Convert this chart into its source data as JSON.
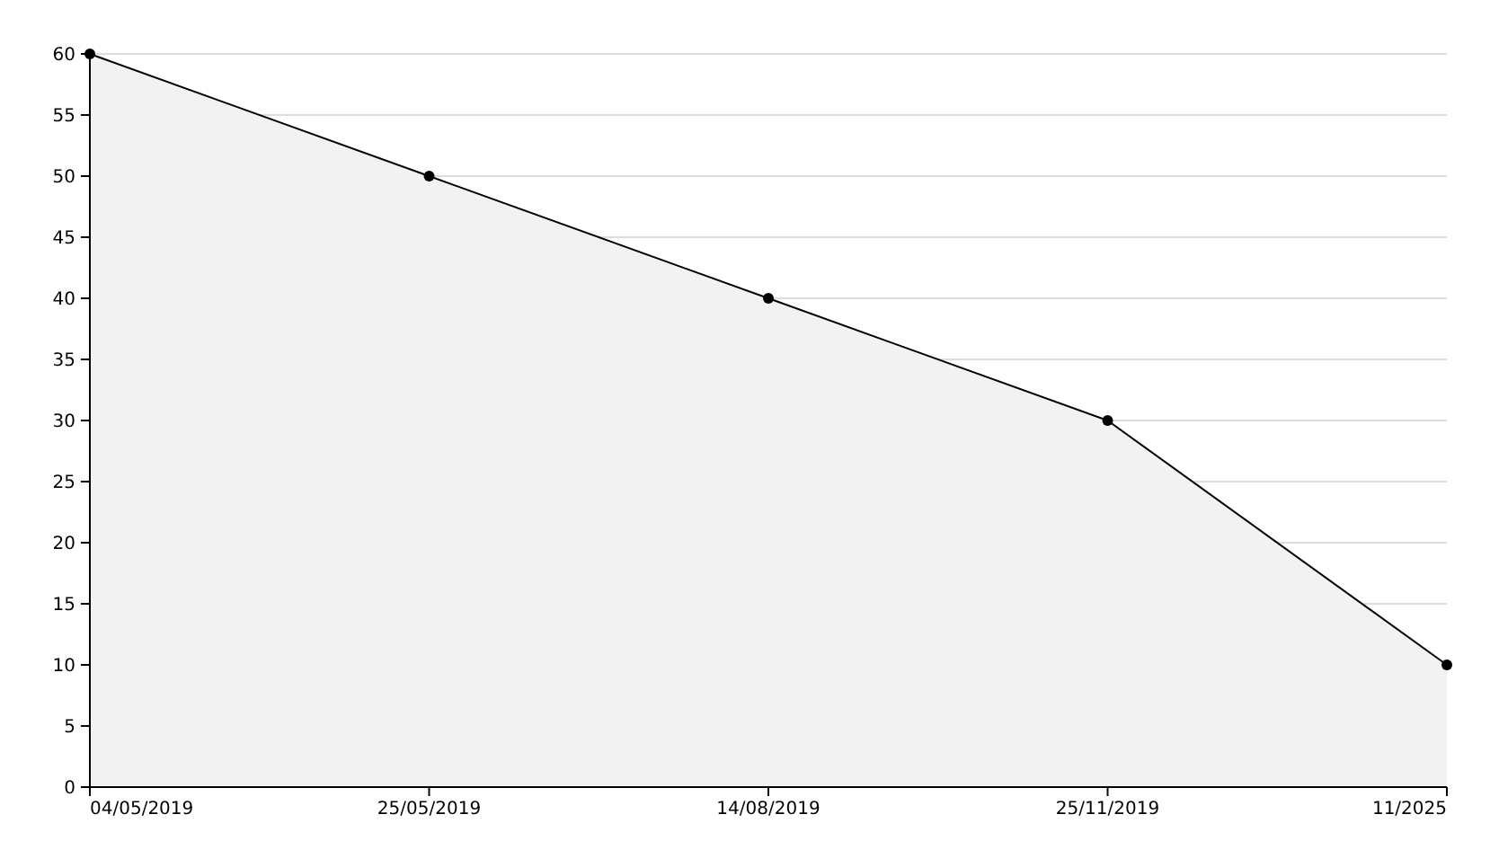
{
  "chart_data": {
    "type": "area",
    "categories": [
      "04/05/2019",
      "25/05/2019",
      "14/08/2019",
      "25/11/2019",
      "11/2025"
    ],
    "series": [
      {
        "color": "#000000",
        "values": [
          60,
          50,
          40,
          30,
          10
        ]
      }
    ],
    "ylim": [
      0,
      60
    ],
    "yticks": [
      0,
      5,
      10,
      15,
      20,
      25,
      30,
      35,
      40,
      45,
      50,
      55,
      60
    ],
    "grid": "y",
    "marker": "circle",
    "line_style": "solid"
  }
}
